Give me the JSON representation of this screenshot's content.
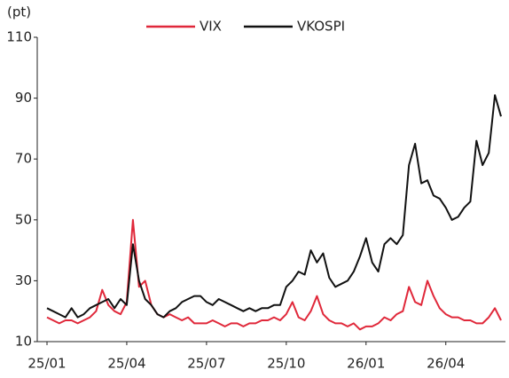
{
  "chart_data": {
    "type": "line",
    "y_label": "(pt)",
    "categories": [
      "25/01",
      null,
      null,
      null,
      null,
      null,
      null,
      null,
      null,
      null,
      null,
      null,
      null,
      "25/04",
      null,
      null,
      null,
      null,
      null,
      null,
      null,
      null,
      null,
      null,
      null,
      null,
      "25/07",
      null,
      null,
      null,
      null,
      null,
      null,
      null,
      null,
      null,
      null,
      null,
      null,
      "25/10",
      null,
      null,
      null,
      null,
      null,
      null,
      null,
      null,
      null,
      null,
      null,
      null,
      "26/01",
      null,
      null,
      null,
      null,
      null,
      null,
      null,
      null,
      null,
      null,
      null,
      null,
      "26/04",
      null,
      null,
      null,
      null,
      null,
      null,
      null,
      null,
      null
    ],
    "series": [
      {
        "name": "VIX",
        "color": "#e0283a",
        "values": [
          18,
          17,
          16,
          17,
          17,
          16,
          17,
          18,
          20,
          27,
          22,
          20,
          19,
          23,
          50,
          28,
          30,
          22,
          19,
          18,
          19,
          18,
          17,
          18,
          16,
          16,
          16,
          17,
          16,
          15,
          16,
          16,
          15,
          16,
          16,
          17,
          17,
          18,
          17,
          19,
          23,
          18,
          17,
          20,
          25,
          19,
          17,
          16,
          16,
          15,
          16,
          14,
          15,
          15,
          16,
          18,
          17,
          19,
          20,
          28,
          23,
          22,
          30,
          25,
          21,
          19,
          18,
          18,
          17,
          17,
          16,
          16,
          18,
          21,
          17
        ]
      },
      {
        "name": "VKOSPI",
        "color": "#111111",
        "values": [
          21,
          20,
          19,
          18,
          21,
          18,
          19,
          21,
          22,
          23,
          24,
          21,
          24,
          22,
          42,
          30,
          24,
          22,
          19,
          18,
          20,
          21,
          23,
          24,
          25,
          25,
          23,
          22,
          24,
          23,
          22,
          21,
          20,
          21,
          20,
          21,
          21,
          22,
          22,
          28,
          30,
          33,
          32,
          40,
          36,
          39,
          31,
          28,
          29,
          30,
          33,
          38,
          44,
          36,
          33,
          42,
          44,
          42,
          45,
          68,
          75,
          62,
          63,
          58,
          57,
          54,
          50,
          51,
          54,
          56,
          76,
          68,
          72,
          91,
          84
        ]
      }
    ],
    "ylim": [
      10,
      110
    ],
    "yticks": [
      10,
      30,
      50,
      70,
      90,
      110
    ],
    "legend": "top"
  }
}
